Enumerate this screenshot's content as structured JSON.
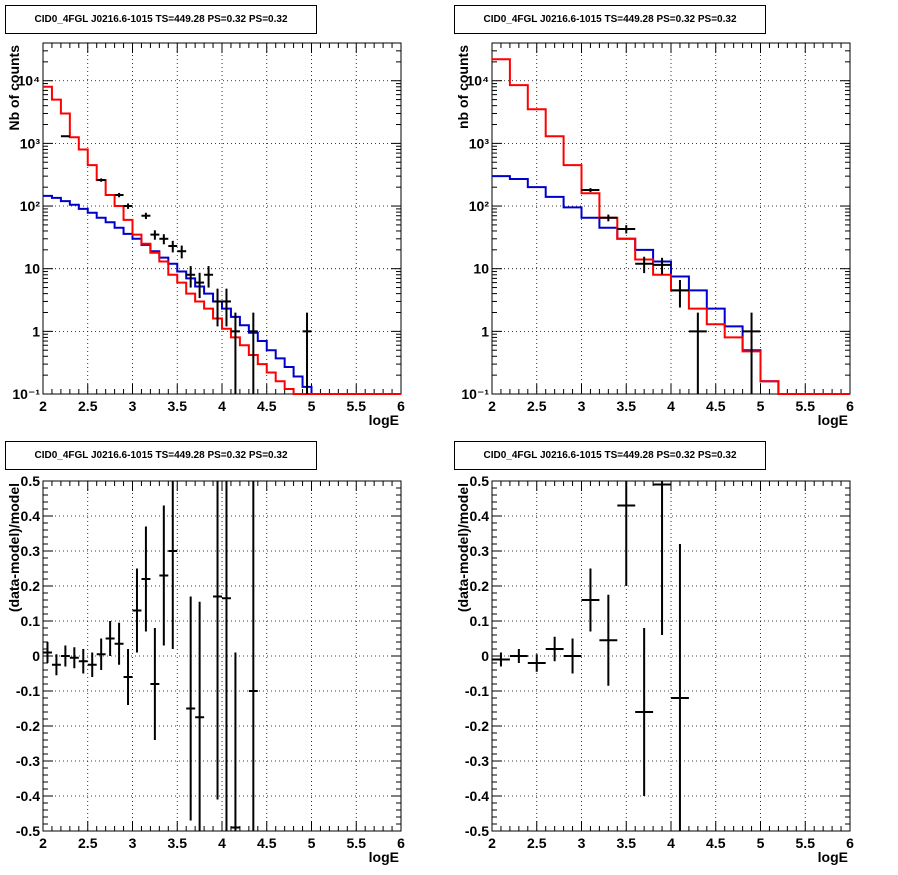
{
  "titles": [
    "CID0_4FGL J0216.6-1015 TS=449.28 PS=0.32 PS=0.32",
    "CID0_4FGL J0216.6-1015 TS=449.28 PS=0.32 PS=0.32",
    "CID0_4FGL J0216.6-1015 TS=449.28 PS=0.32 PS=0.32",
    "CID0_4FGL J0216.6-1015 TS=449.28 PS=0.32 PS=0.32"
  ],
  "colors": {
    "model_total": "#ff0000",
    "model_bkg": "#0000cc",
    "data": "#000000",
    "grid": "#000000"
  },
  "chart_data": [
    {
      "type": "step+errorbar",
      "panel": "top-left",
      "xlabel": "logE",
      "ylabel": "Nb of counts",
      "xlim": [
        2,
        6
      ],
      "ylim": [
        0.1,
        40000
      ],
      "yscale": "log",
      "xticks": [
        "2",
        "2.5",
        "3",
        "3.5",
        "4",
        "4.5",
        "5",
        "5.5",
        "6"
      ],
      "yticks": [
        {
          "v": 0.1,
          "label": "10⁻¹"
        },
        {
          "v": 1,
          "label": "1"
        },
        {
          "v": 10,
          "label": "10"
        },
        {
          "v": 100,
          "label": "10²"
        },
        {
          "v": 1000,
          "label": "10³"
        },
        {
          "v": 10000,
          "label": "10⁴"
        }
      ],
      "grid": true,
      "bin_width": 0.1,
      "model_total": [
        8000,
        5000,
        3000,
        1250,
        800,
        450,
        260,
        150,
        100,
        60,
        35,
        25,
        18,
        13,
        8,
        6,
        4,
        3,
        2.3,
        1.6,
        1.1,
        0.8,
        0.6,
        0.42,
        0.3,
        0.22,
        0.16,
        0.12,
        0.1,
        0.1,
        0.1,
        0.1,
        0.1,
        0.1,
        0.1,
        0.1,
        0.1,
        0.1,
        0.1,
        0.1
      ],
      "model_bkg": [
        145,
        135,
        120,
        105,
        90,
        78,
        65,
        55,
        45,
        36,
        30,
        24,
        19,
        15,
        12,
        9,
        7,
        5.2,
        4,
        3,
        2.3,
        1.7,
        1.25,
        0.95,
        0.7,
        0.5,
        0.37,
        0.27,
        0.19,
        0.13,
        0.1,
        0.1,
        0.1,
        0.1,
        0.1,
        0.1,
        0.1,
        0.1,
        0.1,
        0.1
      ],
      "data": [
        {
          "x": 2.25,
          "y": 1300,
          "yerr": 36
        },
        {
          "x": 2.65,
          "y": 260,
          "yerr": 16
        },
        {
          "x": 2.85,
          "y": 150,
          "yerr": 12
        },
        {
          "x": 2.95,
          "y": 100,
          "yerr": 10
        },
        {
          "x": 3.15,
          "y": 70,
          "yerr": 8
        },
        {
          "x": 3.25,
          "y": 35,
          "yerr": 6
        },
        {
          "x": 3.35,
          "y": 30,
          "yerr": 5.5
        },
        {
          "x": 3.45,
          "y": 23,
          "yerr": 4.8
        },
        {
          "x": 3.55,
          "y": 19,
          "yerr": 4.4
        },
        {
          "x": 3.65,
          "y": 8,
          "yerr": 3
        },
        {
          "x": 3.75,
          "y": 6,
          "yerr": 2.6
        },
        {
          "x": 3.85,
          "y": 8,
          "yerr": 3
        },
        {
          "x": 3.95,
          "y": 3,
          "yerr": 1.8
        },
        {
          "x": 4.05,
          "y": 3,
          "yerr": 1.8
        },
        {
          "x": 4.15,
          "y": 1,
          "yerr": 0.99
        },
        {
          "x": 4.35,
          "y": 1,
          "yerr": 0.99
        },
        {
          "x": 4.95,
          "y": 1,
          "yerr": 0.99
        }
      ]
    },
    {
      "type": "step+errorbar",
      "panel": "top-right",
      "xlabel": "logE",
      "ylabel": "nb of counts",
      "xlim": [
        2,
        6
      ],
      "ylim": [
        0.1,
        40000
      ],
      "yscale": "log",
      "xticks": [
        "2",
        "2.5",
        "3",
        "3.5",
        "4",
        "4.5",
        "5",
        "5.5",
        "6"
      ],
      "yticks": [
        {
          "v": 0.1,
          "label": "10⁻¹"
        },
        {
          "v": 1,
          "label": "1"
        },
        {
          "v": 10,
          "label": "10"
        },
        {
          "v": 100,
          "label": "10²"
        },
        {
          "v": 1000,
          "label": "10³"
        },
        {
          "v": 10000,
          "label": "10⁴"
        }
      ],
      "grid": true,
      "bin_width": 0.2,
      "model_total": [
        22000,
        8500,
        3500,
        1300,
        450,
        160,
        65,
        30,
        14,
        8,
        4.5,
        2.3,
        1.3,
        0.8,
        0.48,
        0.16,
        0.1,
        0.1,
        0.1,
        0.1
      ],
      "model_bkg": [
        300,
        270,
        200,
        140,
        95,
        65,
        45,
        30,
        20,
        13,
        7.5,
        4.5,
        2.3,
        1.2,
        0.5,
        0.16,
        0.1,
        0.1,
        0.1,
        0.1
      ],
      "data": [
        {
          "x": 3.1,
          "y": 180,
          "yerr": 13
        },
        {
          "x": 3.3,
          "y": 65,
          "yerr": 8
        },
        {
          "x": 3.5,
          "y": 43,
          "yerr": 6.5
        },
        {
          "x": 3.7,
          "y": 12,
          "yerr": 3.5
        },
        {
          "x": 3.9,
          "y": 11.5,
          "yerr": 3.4
        },
        {
          "x": 4.1,
          "y": 4.5,
          "yerr": 2.1
        },
        {
          "x": 4.3,
          "y": 1,
          "yerr": 0.99
        },
        {
          "x": 4.9,
          "y": 1,
          "yerr": 0.99
        }
      ]
    },
    {
      "type": "errorbar",
      "panel": "bottom-left",
      "xlabel": "logE",
      "ylabel": "(data-model)/model",
      "xlim": [
        2,
        6
      ],
      "ylim": [
        -0.5,
        0.5
      ],
      "xticks": [
        "2",
        "2.5",
        "3",
        "3.5",
        "4",
        "4.5",
        "5",
        "5.5",
        "6"
      ],
      "yticks": [
        "-0.5",
        "-0.4",
        "-0.3",
        "-0.2",
        "-0.1",
        "0",
        "0.1",
        "0.2",
        "0.3",
        "0.4",
        "0.5"
      ],
      "grid": true,
      "bin_width": 0.1,
      "data": [
        {
          "x": 2.05,
          "y": 0.01,
          "yerr": 0.03
        },
        {
          "x": 2.15,
          "y": -0.025,
          "yerr": 0.03
        },
        {
          "x": 2.25,
          "y": 0.0,
          "yerr": 0.03
        },
        {
          "x": 2.35,
          "y": -0.005,
          "yerr": 0.03
        },
        {
          "x": 2.45,
          "y": -0.015,
          "yerr": 0.035
        },
        {
          "x": 2.55,
          "y": -0.025,
          "yerr": 0.035
        },
        {
          "x": 2.65,
          "y": 0.005,
          "yerr": 0.045
        },
        {
          "x": 2.75,
          "y": 0.05,
          "yerr": 0.05
        },
        {
          "x": 2.85,
          "y": 0.035,
          "yerr": 0.06
        },
        {
          "x": 2.95,
          "y": -0.06,
          "yerr": 0.08
        },
        {
          "x": 3.05,
          "y": 0.13,
          "yerr": 0.12
        },
        {
          "x": 3.15,
          "y": 0.22,
          "yerr": 0.15
        },
        {
          "x": 3.25,
          "y": -0.08,
          "yerr": 0.16
        },
        {
          "x": 3.35,
          "y": 0.23,
          "yerr": 0.2
        },
        {
          "x": 3.45,
          "y": 0.3,
          "yerr": 0.28
        },
        {
          "x": 3.65,
          "y": -0.15,
          "yerr": 0.32
        },
        {
          "x": 3.75,
          "y": -0.175,
          "yerr": 0.33
        },
        {
          "x": 3.95,
          "y": 0.17,
          "yerr": 0.58
        },
        {
          "x": 4.05,
          "y": 0.165,
          "yerr": 0.7
        },
        {
          "x": 4.15,
          "y": -0.49,
          "yerr": 0.5
        },
        {
          "x": 4.35,
          "y": -0.1,
          "yerr": 0.7
        }
      ]
    },
    {
      "type": "errorbar",
      "panel": "bottom-right",
      "xlabel": "logE",
      "ylabel": "(data-model)/model",
      "xlim": [
        2,
        6
      ],
      "ylim": [
        -0.5,
        0.5
      ],
      "xticks": [
        "2",
        "2.5",
        "3",
        "3.5",
        "4",
        "4.5",
        "5",
        "5.5",
        "6"
      ],
      "yticks": [
        "-0.5",
        "-0.4",
        "-0.3",
        "-0.2",
        "-0.1",
        "0",
        "0.1",
        "0.2",
        "0.3",
        "0.4",
        "0.5"
      ],
      "grid": true,
      "bin_width": 0.2,
      "data": [
        {
          "x": 2.1,
          "y": -0.01,
          "yerr": 0.02
        },
        {
          "x": 2.3,
          "y": 0.0,
          "yerr": 0.02
        },
        {
          "x": 2.5,
          "y": -0.02,
          "yerr": 0.025
        },
        {
          "x": 2.7,
          "y": 0.02,
          "yerr": 0.035
        },
        {
          "x": 2.9,
          "y": 0.0,
          "yerr": 0.05
        },
        {
          "x": 3.1,
          "y": 0.16,
          "yerr": 0.09
        },
        {
          "x": 3.3,
          "y": 0.045,
          "yerr": 0.13
        },
        {
          "x": 3.5,
          "y": 0.43,
          "yerr": 0.23
        },
        {
          "x": 3.7,
          "y": -0.16,
          "yerr": 0.24
        },
        {
          "x": 3.9,
          "y": 0.49,
          "yerr": 0.43
        },
        {
          "x": 4.1,
          "y": -0.12,
          "yerr": 0.44
        }
      ]
    }
  ]
}
